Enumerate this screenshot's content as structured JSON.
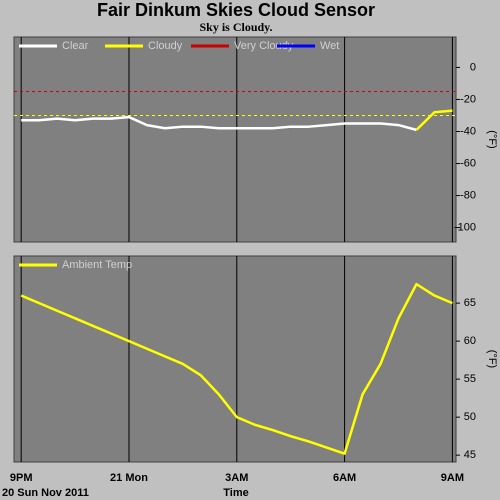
{
  "chart_data": [
    {
      "type": "line",
      "title": "Fair Dinkum Skies Cloud Sensor",
      "subtitle": "Sky is Cloudy.",
      "ylabel": "(°F)",
      "x": [
        0,
        0.5,
        1,
        1.5,
        2,
        2.5,
        3,
        3.5,
        4,
        4.5,
        5,
        5.5,
        6,
        6.5,
        7,
        7.5,
        8,
        8.5,
        9,
        9.5,
        10,
        10.5,
        11,
        11.5,
        12
      ],
      "series": [
        {
          "name": "Clear",
          "color": "#ffffff",
          "values": [
            -33,
            -33,
            -32,
            -33,
            -32,
            -32,
            -31,
            -36,
            -38,
            -37,
            -37,
            -38,
            -38,
            -38,
            -38,
            -37,
            -37,
            -36,
            -35,
            -35,
            -35,
            -36,
            -39,
            null,
            null
          ]
        },
        {
          "name": "Cloudy",
          "color": "#ffff00",
          "values": [
            null,
            null,
            null,
            null,
            null,
            null,
            null,
            null,
            null,
            null,
            null,
            null,
            null,
            null,
            null,
            null,
            null,
            null,
            null,
            null,
            null,
            null,
            -39,
            -28,
            -27
          ]
        },
        {
          "name": "Very Cloudy",
          "color": "#cc0000",
          "values": [
            null,
            null,
            null,
            null,
            null,
            null,
            null,
            null,
            null,
            null,
            null,
            null,
            null,
            null,
            null,
            null,
            null,
            null,
            null,
            null,
            null,
            null,
            null,
            null,
            null
          ]
        },
        {
          "name": "Wet",
          "color": "#0000ff",
          "values": [
            null,
            null,
            null,
            null,
            null,
            null,
            null,
            null,
            null,
            null,
            null,
            null,
            null,
            null,
            null,
            null,
            null,
            null,
            null,
            null,
            null,
            null,
            null,
            null,
            null
          ]
        }
      ],
      "reference_lines": [
        {
          "value": -15,
          "color": "#cc0000"
        },
        {
          "value": -30,
          "color": "#ffff00"
        }
      ],
      "xlim": [
        -0.2,
        12.1
      ],
      "ylim": [
        -109,
        19
      ],
      "yticks": [
        0,
        -20,
        -40,
        -60,
        -80,
        -100
      ]
    },
    {
      "type": "line",
      "ylabel": "(°F)",
      "xlabel": "Time",
      "date": "20 Sun Nov 2011",
      "x": [
        0,
        0.5,
        1,
        1.5,
        2,
        2.5,
        3,
        3.5,
        4,
        4.5,
        5,
        5.5,
        6,
        6.5,
        7,
        7.5,
        8,
        8.5,
        9,
        9.5,
        10,
        10.5,
        11,
        11.5,
        12
      ],
      "series": [
        {
          "name": "Ambient Temp",
          "color": "#ffff00",
          "values": [
            66,
            65,
            64,
            63,
            62,
            61,
            60,
            59,
            58,
            57,
            55.5,
            53,
            50,
            49,
            48.3,
            47.5,
            46.8,
            46,
            45.2,
            53,
            57,
            63,
            67.5,
            66,
            65
          ]
        }
      ],
      "xlim": [
        -0.2,
        12.1
      ],
      "ylim": [
        44.1,
        71.2
      ],
      "yticks": [
        65,
        60,
        55,
        50,
        45
      ],
      "xticks": [
        {
          "value": 0,
          "label": "9PM"
        },
        {
          "value": 3,
          "label": "21 Mon"
        },
        {
          "value": 6,
          "label": "3AM"
        },
        {
          "value": 9,
          "label": "6AM"
        },
        {
          "value": 12,
          "label": "9AM"
        }
      ]
    }
  ]
}
